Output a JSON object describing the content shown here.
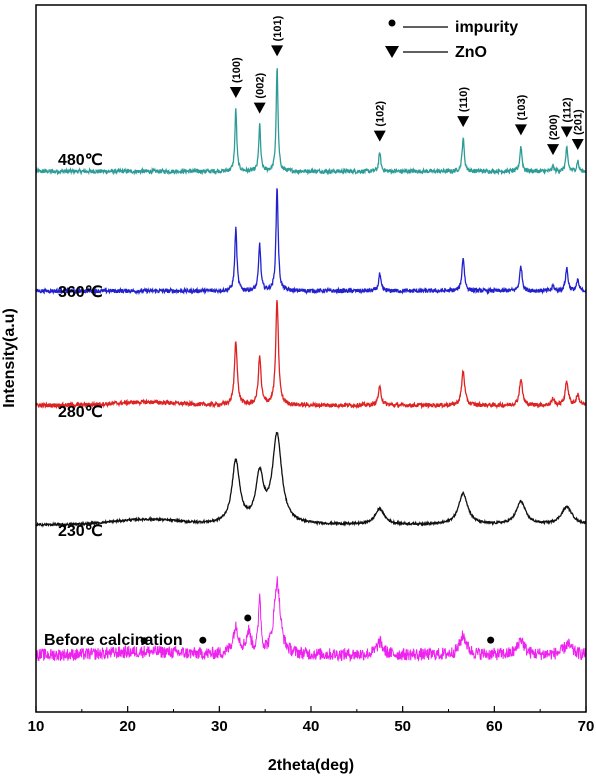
{
  "chart_data": {
    "type": "line",
    "xlabel": "2theta(deg)",
    "ylabel": "Intensity(a.u)",
    "xlim": [
      10,
      70
    ],
    "x_ticks": [
      "10",
      "20",
      "30",
      "40",
      "50",
      "60",
      "70"
    ],
    "legend": {
      "placement": "top-right",
      "entries": [
        {
          "marker": "circle",
          "label": "impurity"
        },
        {
          "marker": "triangle-down",
          "label": "ZnO"
        }
      ]
    },
    "series": [
      {
        "name": "480℃",
        "color": "#2e9c96",
        "baseline": 5.0,
        "noise": 0.02,
        "hump": 0,
        "peaks": [
          [
            31.8,
            0.6,
            0.12
          ],
          [
            34.4,
            0.45,
            0.12
          ],
          [
            36.3,
            1.0,
            0.12
          ],
          [
            47.5,
            0.18,
            0.13
          ],
          [
            56.6,
            0.32,
            0.14
          ],
          [
            62.9,
            0.24,
            0.14
          ],
          [
            66.4,
            0.05,
            0.12
          ],
          [
            67.9,
            0.22,
            0.14
          ],
          [
            69.1,
            0.1,
            0.12
          ]
        ]
      },
      {
        "name": "360℃",
        "color": "#2222cc",
        "baseline": 3.85,
        "noise": 0.02,
        "hump": 0,
        "peaks": [
          [
            31.8,
            0.6,
            0.14
          ],
          [
            34.4,
            0.45,
            0.14
          ],
          [
            36.3,
            1.0,
            0.14
          ],
          [
            47.5,
            0.16,
            0.15
          ],
          [
            56.6,
            0.32,
            0.16
          ],
          [
            62.9,
            0.24,
            0.16
          ],
          [
            66.4,
            0.05,
            0.14
          ],
          [
            67.9,
            0.22,
            0.16
          ],
          [
            69.1,
            0.1,
            0.14
          ]
        ]
      },
      {
        "name": "280℃",
        "color": "#dd2222",
        "baseline": 2.75,
        "noise": 0.02,
        "hump": 0.03,
        "peaks": [
          [
            31.8,
            0.62,
            0.18
          ],
          [
            34.4,
            0.46,
            0.18
          ],
          [
            36.3,
            1.0,
            0.18
          ],
          [
            47.5,
            0.17,
            0.2
          ],
          [
            56.6,
            0.33,
            0.2
          ],
          [
            62.9,
            0.25,
            0.2
          ],
          [
            66.4,
            0.06,
            0.18
          ],
          [
            67.9,
            0.23,
            0.2
          ],
          [
            69.1,
            0.1,
            0.18
          ]
        ]
      },
      {
        "name": "230℃",
        "color": "#111111",
        "baseline": 1.6,
        "noise": 0.01,
        "hump": 0.05,
        "peaks": [
          [
            31.8,
            0.6,
            0.5
          ],
          [
            34.4,
            0.45,
            0.5
          ],
          [
            36.3,
            0.85,
            0.6
          ],
          [
            47.5,
            0.15,
            0.6
          ],
          [
            56.6,
            0.3,
            0.6
          ],
          [
            62.9,
            0.22,
            0.6
          ],
          [
            67.9,
            0.17,
            0.7
          ]
        ]
      },
      {
        "name": "Before calcination",
        "color": "#ee22ee",
        "baseline": 0.35,
        "noise": 0.06,
        "hump": 0.03,
        "peaks": [
          [
            31.8,
            0.25,
            0.4
          ],
          [
            33.2,
            0.2,
            0.3
          ],
          [
            34.4,
            0.55,
            0.15
          ],
          [
            36.3,
            0.7,
            0.4
          ],
          [
            47.5,
            0.12,
            0.4
          ],
          [
            56.6,
            0.18,
            0.45
          ],
          [
            62.9,
            0.15,
            0.4
          ],
          [
            68.0,
            0.1,
            0.5
          ]
        ]
      }
    ],
    "zno_peaks": [
      {
        "x": 31.8,
        "label": "(100)"
      },
      {
        "x": 34.4,
        "label": "(002)"
      },
      {
        "x": 36.3,
        "label": "(101)"
      },
      {
        "x": 47.5,
        "label": "(102)"
      },
      {
        "x": 56.6,
        "label": "(110)"
      },
      {
        "x": 62.9,
        "label": "(103)"
      },
      {
        "x": 66.4,
        "label": "(200)"
      },
      {
        "x": 67.9,
        "label": "(112)"
      },
      {
        "x": 69.1,
        "label": "(201)"
      }
    ],
    "impurity_peaks": [
      21.8,
      28.2,
      33.1,
      59.6
    ]
  }
}
